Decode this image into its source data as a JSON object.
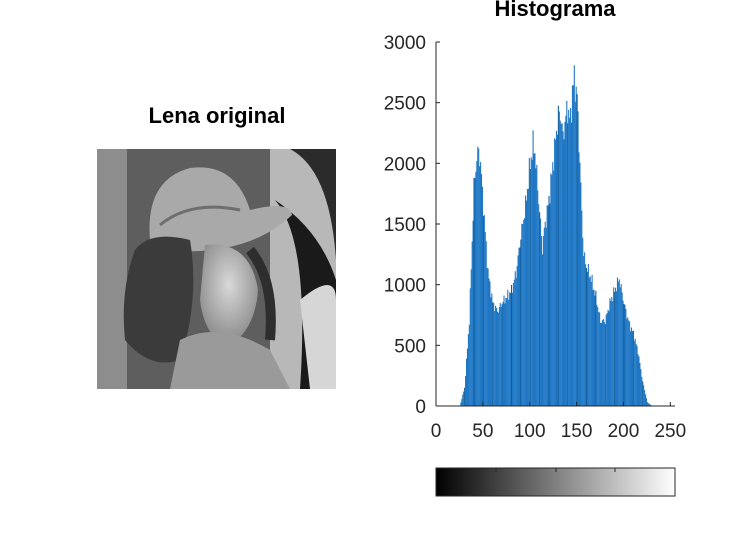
{
  "image_panel": {
    "title": "Lena original",
    "image_description_name": "lena-grayscale-image"
  },
  "chart_data": {
    "type": "bar",
    "title": "Histograma",
    "xlabel": "",
    "ylabel": "",
    "xlim": [
      0,
      255
    ],
    "ylim": [
      0,
      3000
    ],
    "xticks": [
      0,
      50,
      100,
      150,
      200,
      250
    ],
    "yticks": [
      0,
      500,
      1000,
      1500,
      2000,
      2500,
      3000
    ],
    "bar_color": "#1f77c4",
    "bar_color_dark": "#0f5c99",
    "grid": false,
    "legend": "none",
    "colorbar": {
      "orientation": "horizontal",
      "range": [
        0,
        255
      ],
      "colormap": "gray",
      "ticks": [
        0,
        64,
        128,
        191,
        255
      ]
    },
    "x": [
      25,
      30,
      35,
      40,
      43,
      45,
      47,
      50,
      55,
      60,
      65,
      70,
      75,
      80,
      85,
      90,
      95,
      100,
      103,
      105,
      107,
      110,
      113,
      115,
      120,
      125,
      130,
      133,
      135,
      137,
      140,
      143,
      145,
      147,
      150,
      153,
      155,
      157,
      160,
      165,
      170,
      175,
      180,
      185,
      190,
      195,
      200,
      203,
      205,
      207,
      210,
      215,
      220,
      225,
      230
    ],
    "values": [
      0,
      150,
      700,
      1800,
      2050,
      2100,
      2000,
      1650,
      1100,
      850,
      780,
      850,
      900,
      950,
      1100,
      1400,
      1650,
      2000,
      2150,
      2100,
      1900,
      1600,
      1300,
      1450,
      1700,
      2050,
      2400,
      2380,
      2200,
      2350,
      2450,
      2350,
      2600,
      2700,
      2550,
      2000,
      1600,
      1250,
      1150,
      1050,
      900,
      700,
      700,
      850,
      950,
      1050,
      850,
      750,
      700,
      650,
      600,
      450,
      200,
      30,
      0
    ]
  }
}
